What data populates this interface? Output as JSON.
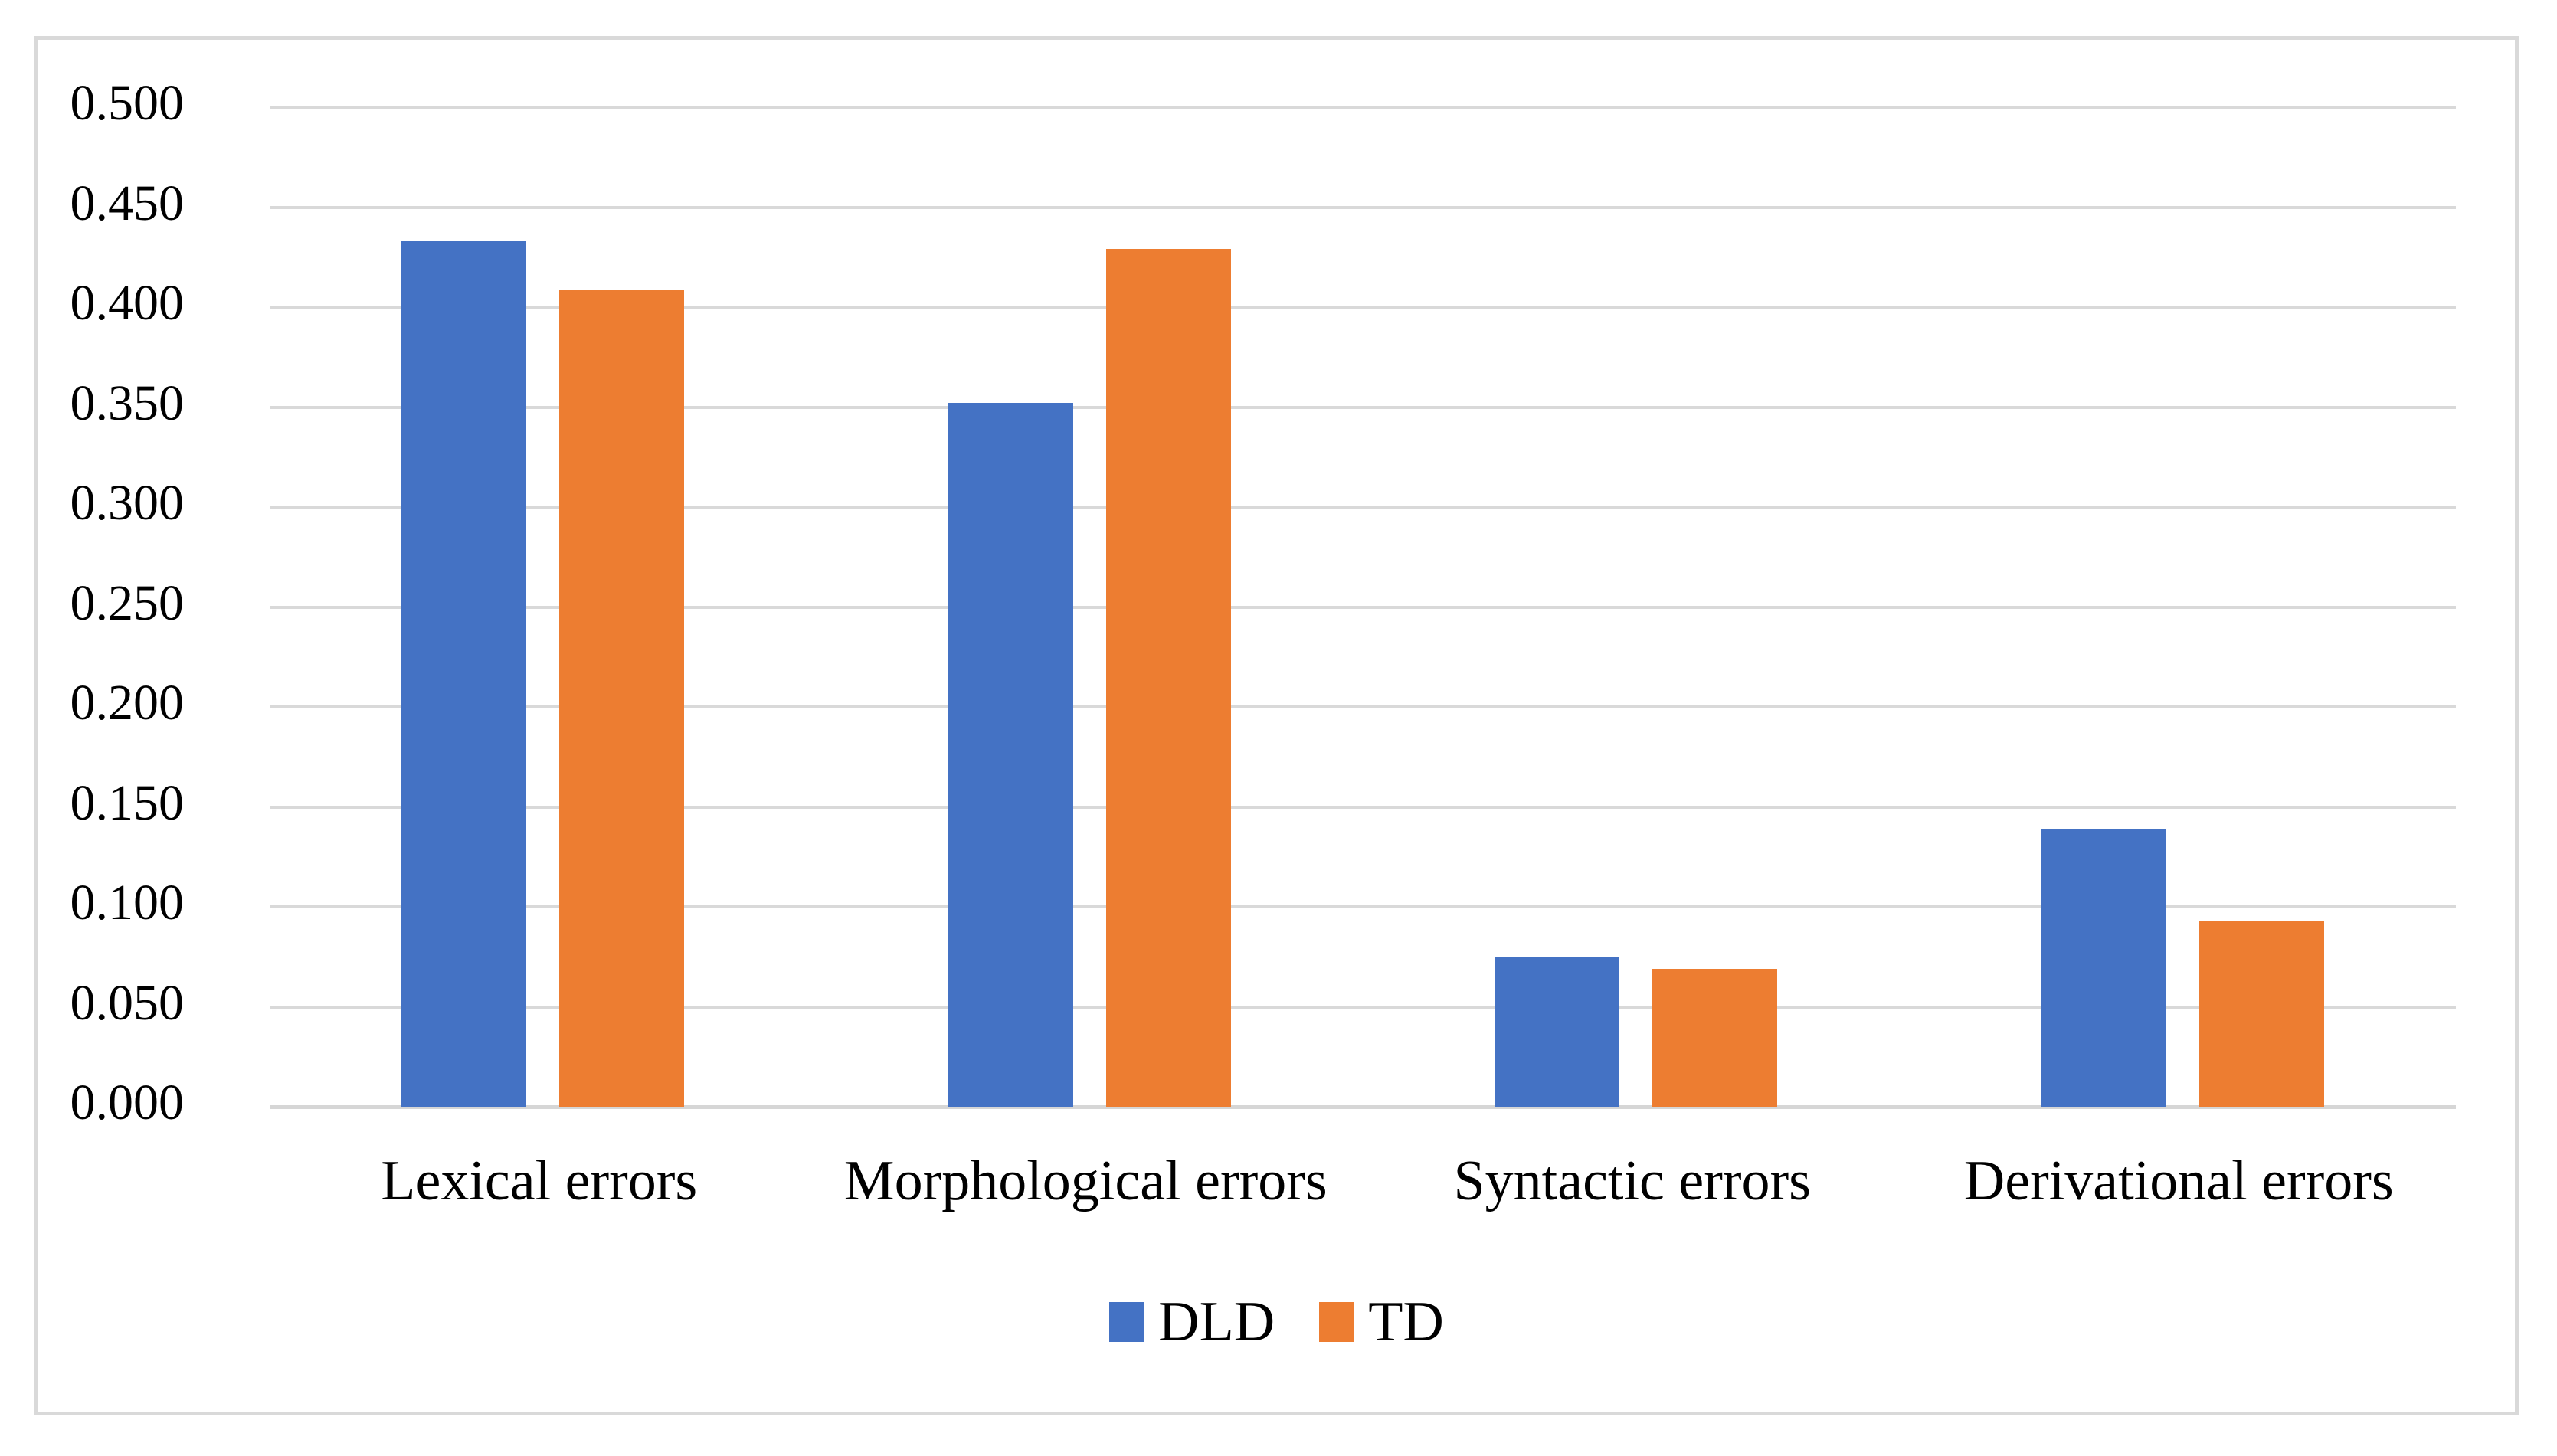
{
  "figure": {
    "background_color": "#ffffff",
    "frame_border_color": "#D9D9D9"
  },
  "chart_data": {
    "type": "bar",
    "title": "",
    "xlabel": "",
    "ylabel": "",
    "categories": [
      "Lexical errors",
      "Morphological errors",
      "Syntactic errors",
      "Derivational errors"
    ],
    "series": [
      {
        "name": "DLD",
        "color": "#4472C4",
        "values": [
          0.433,
          0.352,
          0.075,
          0.139
        ]
      },
      {
        "name": "TD",
        "color": "#ED7D31",
        "values": [
          0.409,
          0.429,
          0.069,
          0.093
        ]
      }
    ],
    "ylim": [
      0.0,
      0.5
    ],
    "ytick_step": 0.05,
    "ytick_decimals": 3,
    "ytick_labels": [
      "0.000",
      "0.050",
      "0.100",
      "0.150",
      "0.200",
      "0.250",
      "0.300",
      "0.350",
      "0.400",
      "0.450",
      "0.500"
    ],
    "grid": "horizontal",
    "gridline_color": "#D9D9D9",
    "axis_line_color": "#D6D6D6",
    "text_color": "#000000",
    "legend_position": "bottom-center"
  }
}
